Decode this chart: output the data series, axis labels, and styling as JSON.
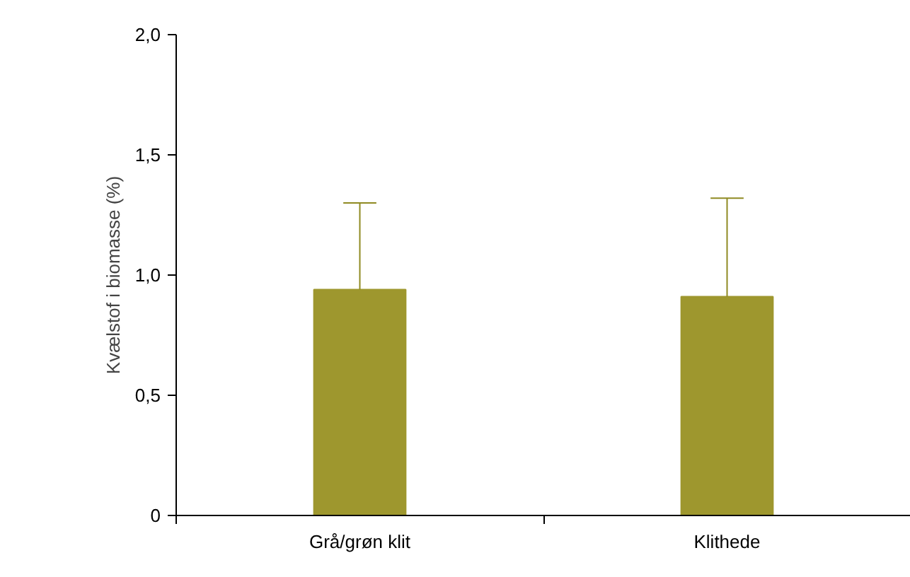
{
  "chart_data": {
    "type": "bar",
    "ylabel": "Kvælstof i biomasse (%)",
    "categories": [
      "Grå/grøn klit",
      "Klithede"
    ],
    "values": [
      0.94,
      0.91
    ],
    "errors": [
      [
        0.94,
        1.3
      ],
      [
        0.91,
        1.32
      ]
    ],
    "color": "#9e972e",
    "ylim": [
      0,
      2.0
    ],
    "yticks": [
      {
        "value": 0,
        "label": "0"
      },
      {
        "value": 0.5,
        "label": "0,5"
      },
      {
        "value": 1.0,
        "label": "1,0"
      },
      {
        "value": 1.5,
        "label": "1,5"
      },
      {
        "value": 2.0,
        "label": "2,0"
      }
    ],
    "grid": false
  }
}
